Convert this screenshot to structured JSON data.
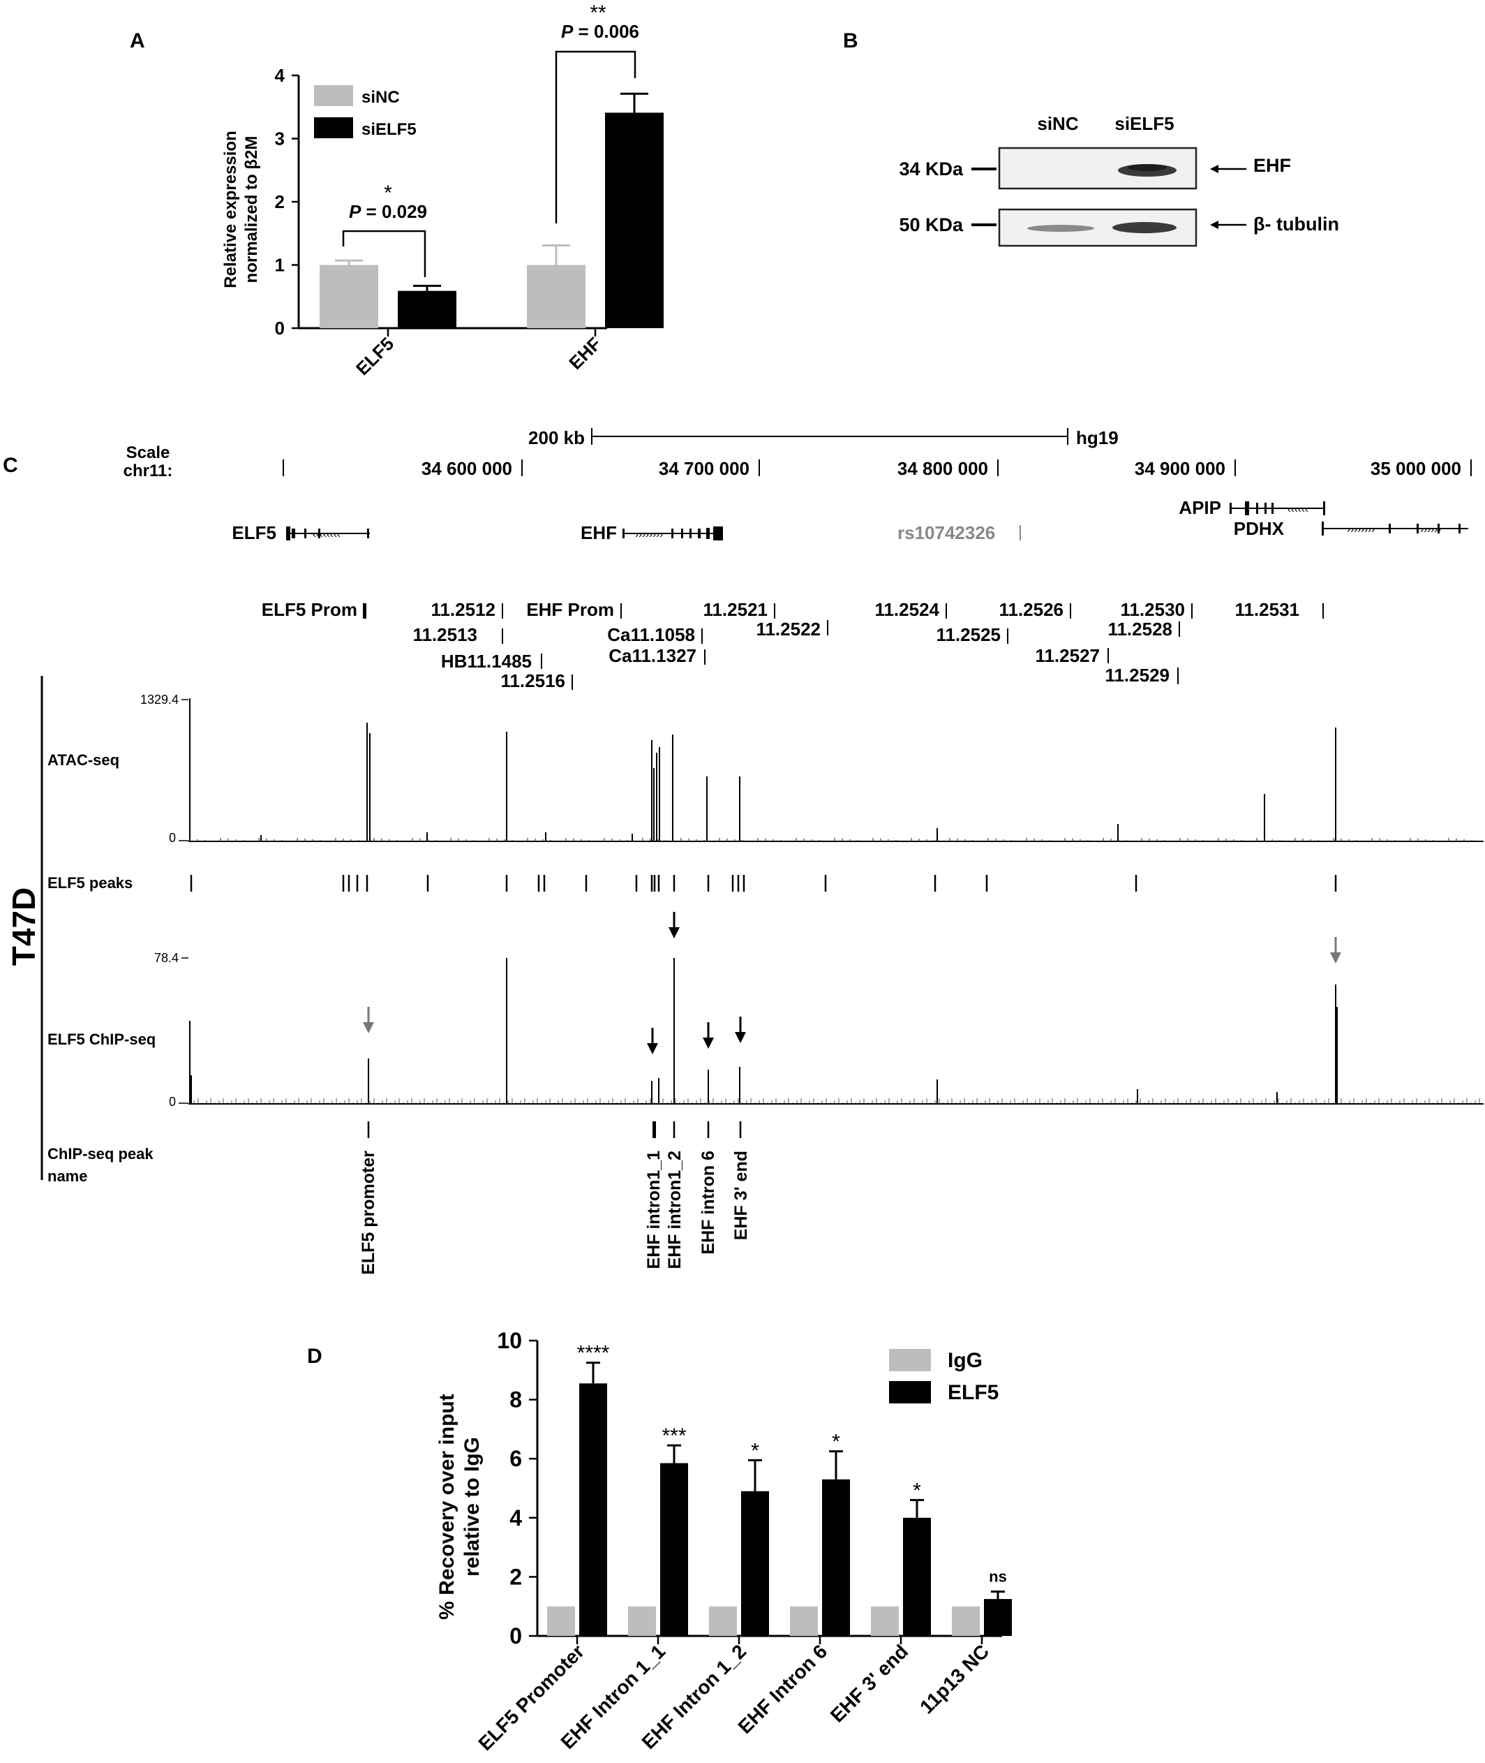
{
  "panels": {
    "A": {
      "letter": "A",
      "ylabel_line1": "Relative expression",
      "ylabel_line2": "normalized to β2M",
      "legend": [
        "siNC",
        "siELF5"
      ],
      "sig": [
        {
          "stars": "*",
          "p_prefix": "P",
          "p_value": " = 0.029"
        },
        {
          "stars": "**",
          "p_prefix": "P",
          "p_value": " = 0.006"
        }
      ]
    },
    "B": {
      "letter": "B",
      "lanes": [
        "siNC",
        "siELF5"
      ],
      "markers": [
        "34 KDa",
        "50 KDa"
      ],
      "proteins": [
        "EHF",
        "β- tubulin"
      ]
    },
    "C": {
      "letter": "C",
      "cell_line": "T47D",
      "scale_label": "Scale",
      "scale_value": "200 kb",
      "assembly": "hg19",
      "chrom": "chr11:",
      "coords": [
        "34 600 000",
        "34 700 000",
        "34 800 000",
        "34 900 000",
        "35 000 000"
      ],
      "genes": [
        "ELF5",
        "EHF",
        "rs10742326",
        "APIP",
        "PDHX"
      ],
      "regions": [
        "ELF5 Prom",
        "11.2512",
        "EHF Prom",
        "11.2521",
        "11.2524",
        "11.2526",
        "11.2530",
        "11.2531",
        "11.2513",
        "Ca11.1058",
        "11.2522",
        "11.2525",
        "11.2528",
        "HB11.1485",
        "Ca11.1327",
        "11.2527",
        "11.2516",
        "11.2529"
      ],
      "tracks": {
        "atac": {
          "label": "ATAC-seq",
          "ymax": "1329.4",
          "ymin": "0"
        },
        "peaks": {
          "label": "ELF5 peaks"
        },
        "chip": {
          "label": "ELF5  ChIP-seq",
          "ymax": "78.4",
          "ymin": "0"
        },
        "peak_names_label_1": "ChIP-seq peak",
        "peak_names_label_2": "name"
      },
      "peak_names": [
        "ELF5 promoter",
        "EHF intron1_1",
        "EHF intron1_2",
        "EHF intron 6",
        "EHF 3' end"
      ]
    },
    "D": {
      "letter": "D",
      "ylabel_line1": "% Recovery over input",
      "ylabel_line2": "relative to IgG"
    }
  },
  "chart_data": [
    {
      "type": "bar",
      "panel": "A",
      "categories": [
        "ELF5",
        "EHF"
      ],
      "series": [
        {
          "name": "siNC",
          "color": "#bdbdbd",
          "values": [
            1.0,
            1.0
          ],
          "errors": [
            0.07,
            0.31
          ]
        },
        {
          "name": "siELF5",
          "color": "#000000",
          "values": [
            0.59,
            3.41
          ],
          "errors": [
            0.08,
            0.3
          ]
        }
      ],
      "ylim": [
        0,
        4
      ],
      "yticks": [
        0,
        1,
        2,
        3,
        4
      ],
      "legend": "top-left"
    },
    {
      "type": "bar",
      "panel": "D",
      "categories": [
        "ELF5 Promoter",
        "EHF Intron 1_1",
        "EHF Intron 1_2",
        "EHF Intron 6",
        "EHF 3' end",
        "11p13 NC"
      ],
      "series": [
        {
          "name": "IgG",
          "color": "#bdbdbd",
          "values": [
            1,
            1,
            1,
            1,
            1,
            1
          ]
        },
        {
          "name": "ELF5",
          "color": "#000000",
          "values": [
            8.55,
            5.85,
            4.9,
            5.3,
            4.0,
            1.25
          ],
          "errors": [
            0.7,
            0.6,
            1.05,
            0.95,
            0.6,
            0.25
          ]
        }
      ],
      "annotations": [
        "****",
        "***",
        "*",
        "*",
        "*",
        "ns"
      ],
      "ylim": [
        0,
        10
      ],
      "yticks": [
        0,
        2,
        4,
        6,
        8,
        10
      ],
      "legend": "top-right"
    }
  ]
}
